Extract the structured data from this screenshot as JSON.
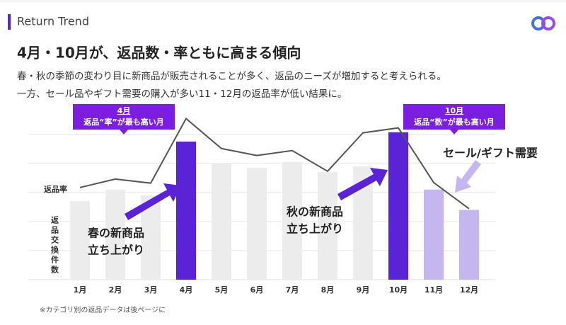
{
  "header": {
    "section": "Return Trend"
  },
  "chart_data": {
    "type": "bar",
    "title": "4月・10月が、返品数・率ともに高まる傾向",
    "subtitle": [
      "春・秋の季節の変わり目に新商品が販売されることが多く、返品のニーズが増加すると考えられる。",
      "一方、セール品やギフト需要の購入が多い11・12月の返品率が低い結果に。"
    ],
    "categories": [
      "1月",
      "2月",
      "3月",
      "4月",
      "5月",
      "6月",
      "7月",
      "8月",
      "9月",
      "10月",
      "11月",
      "12月"
    ],
    "series": [
      {
        "name": "返品交換件数",
        "type": "bar",
        "values": [
          2.7,
          3.1,
          2.9,
          4.75,
          4.0,
          3.85,
          4.05,
          3.7,
          3.9,
          5.07,
          3.1,
          2.4
        ],
        "colors": [
          "#ececec",
          "#ececec",
          "#ececec",
          "#5a23d6",
          "#ececec",
          "#ececec",
          "#ececec",
          "#ececec",
          "#ececec",
          "#5a23d6",
          "#c6b6ef",
          "#c6b6ef"
        ]
      },
      {
        "name": "返品率",
        "type": "line",
        "axis": "y2",
        "color": "#555555",
        "values": [
          3.17,
          3.46,
          3.32,
          5.54,
          4.51,
          4.27,
          4.44,
          3.73,
          5.05,
          5.22,
          3.34,
          2.44
        ]
      }
    ],
    "ylim": [
      0,
      5.6
    ],
    "yticks": [
      1,
      2,
      3,
      4,
      5
    ],
    "y2lim": [
      0,
      5.6
    ],
    "grid": true,
    "annotations": [
      {
        "lines": [
          "4月",
          "返品“率”が最も高い月"
        ]
      },
      {
        "lines": [
          "10月",
          "返品“数”が最も高い月"
        ]
      },
      {
        "lines": [
          "春の新商品",
          "立ち上がり"
        ]
      },
      {
        "lines": [
          "秋の新商品",
          "立ち上がり"
        ]
      },
      {
        "lines": [
          "セール/ギフト需要"
        ]
      }
    ],
    "note": "※カテゴリ別の返品データは後ページに"
  }
}
